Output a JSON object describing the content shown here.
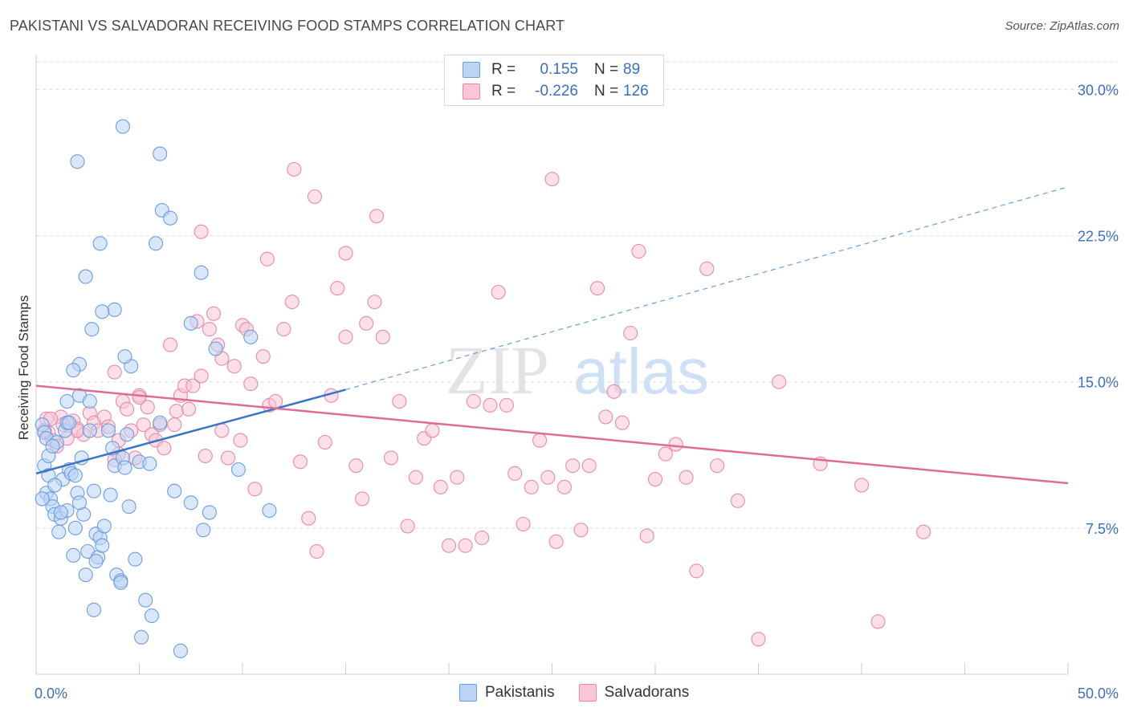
{
  "title": "PAKISTANI VS SALVADORAN RECEIVING FOOD STAMPS CORRELATION CHART",
  "source": "Source: ZipAtlas.com",
  "watermark": {
    "zip": "ZIP",
    "atlas": "atlas"
  },
  "legend": {
    "rows": [
      {
        "r_label": "R =",
        "r_value": "0.155",
        "n_label": "N =",
        "n_value": "89",
        "color": "#6a9ee0"
      },
      {
        "r_label": "R =",
        "r_value": "-0.226",
        "n_label": "N =",
        "n_value": "126",
        "color": "#e88aab"
      }
    ]
  },
  "bottom_legend": [
    "Pakistanis",
    "Salvadorans"
  ],
  "colors": {
    "blue": "#6a9ee0",
    "blue_fill": "#bcd4f4",
    "blue_line": "#3a74c8",
    "pink": "#e88aab",
    "pink_fill": "#f8c6d6",
    "pink_line": "#e06a98",
    "axis_text": "#3a6fc4",
    "grid": "#dddddd"
  },
  "chart_data": {
    "type": "scatter",
    "title": "PAKISTANI VS SALVADORAN RECEIVING FOOD STAMPS CORRELATION CHART",
    "xlabel": "",
    "ylabel": "Receiving Food Stamps",
    "xlim": [
      0,
      50
    ],
    "ylim": [
      0,
      31.5
    ],
    "x_tick_labels": [
      "0.0%",
      "50.0%"
    ],
    "y_ticks": [
      7.5,
      15.0,
      22.5,
      30.0
    ],
    "y_tick_labels": [
      "7.5%",
      "15.0%",
      "22.5%",
      "30.0%"
    ],
    "grid": true,
    "legend_position": "top-center",
    "series": [
      {
        "name": "Pakistanis",
        "color": "#6a9ee0",
        "trend": {
          "x": [
            0,
            15
          ],
          "y": [
            10.3,
            14.6
          ],
          "dashed_extension_to": {
            "x": 50,
            "y": 25.0
          }
        },
        "points": [
          [
            0.3,
            12.8
          ],
          [
            0.4,
            12.4
          ],
          [
            0.5,
            12.1
          ],
          [
            0.4,
            10.7
          ],
          [
            0.6,
            10.2
          ],
          [
            0.5,
            9.3
          ],
          [
            0.7,
            9.0
          ],
          [
            0.8,
            8.6
          ],
          [
            0.9,
            8.2
          ],
          [
            1.0,
            11.9
          ],
          [
            1.1,
            7.3
          ],
          [
            1.2,
            8.0
          ],
          [
            1.3,
            10.0
          ],
          [
            1.4,
            12.5
          ],
          [
            1.5,
            12.9
          ],
          [
            1.5,
            8.4
          ],
          [
            1.6,
            10.5
          ],
          [
            1.7,
            10.3
          ],
          [
            1.8,
            6.1
          ],
          [
            1.9,
            7.5
          ],
          [
            2.0,
            9.3
          ],
          [
            2.1,
            14.3
          ],
          [
            2.2,
            11.1
          ],
          [
            2.3,
            8.2
          ],
          [
            2.4,
            5.1
          ],
          [
            2.5,
            6.3
          ],
          [
            2.6,
            14.0
          ],
          [
            2.7,
            17.7
          ],
          [
            2.8,
            3.3
          ],
          [
            2.9,
            7.2
          ],
          [
            3.0,
            6.0
          ],
          [
            3.1,
            7.0
          ],
          [
            3.2,
            6.6
          ],
          [
            3.3,
            7.6
          ],
          [
            3.5,
            12.5
          ],
          [
            3.6,
            9.2
          ],
          [
            3.7,
            11.6
          ],
          [
            3.8,
            10.7
          ],
          [
            3.9,
            5.1
          ],
          [
            4.1,
            4.8
          ],
          [
            4.2,
            11.1
          ],
          [
            4.3,
            10.6
          ],
          [
            4.4,
            12.3
          ],
          [
            4.5,
            8.6
          ],
          [
            4.6,
            15.8
          ],
          [
            4.8,
            5.9
          ],
          [
            5.0,
            10.9
          ],
          [
            5.1,
            1.9
          ],
          [
            5.3,
            3.8
          ],
          [
            5.5,
            10.8
          ],
          [
            5.6,
            3.0
          ],
          [
            5.8,
            22.1
          ],
          [
            6.0,
            12.9
          ],
          [
            6.1,
            23.8
          ],
          [
            6.5,
            23.4
          ],
          [
            6.7,
            9.4
          ],
          [
            7.0,
            1.2
          ],
          [
            7.5,
            8.8
          ],
          [
            8.1,
            7.4
          ],
          [
            8.4,
            8.3
          ],
          [
            8.7,
            16.7
          ],
          [
            9.8,
            10.5
          ],
          [
            10.4,
            17.3
          ],
          [
            11.3,
            8.4
          ],
          [
            8.0,
            20.6
          ],
          [
            7.5,
            18.0
          ],
          [
            4.3,
            16.3
          ],
          [
            3.8,
            18.7
          ],
          [
            3.2,
            18.6
          ],
          [
            2.4,
            20.4
          ],
          [
            2.1,
            15.9
          ],
          [
            1.8,
            15.6
          ],
          [
            3.1,
            22.1
          ],
          [
            2.0,
            26.3
          ],
          [
            4.2,
            28.1
          ],
          [
            6.0,
            26.7
          ],
          [
            4.1,
            4.7
          ],
          [
            2.8,
            9.4
          ],
          [
            1.6,
            12.9
          ],
          [
            0.9,
            9.7
          ],
          [
            1.2,
            8.3
          ],
          [
            2.1,
            8.8
          ],
          [
            2.9,
            5.8
          ],
          [
            0.6,
            11.2
          ],
          [
            0.8,
            11.7
          ],
          [
            1.9,
            10.2
          ],
          [
            2.6,
            12.5
          ],
          [
            1.5,
            14.0
          ],
          [
            0.3,
            9.0
          ]
        ]
      },
      {
        "name": "Salvadorans",
        "color": "#e88aab",
        "trend": {
          "x": [
            0,
            50
          ],
          "y": [
            14.8,
            9.8
          ]
        },
        "points": [
          [
            0.5,
            13.1
          ],
          [
            0.6,
            12.4
          ],
          [
            0.8,
            12.0
          ],
          [
            1.0,
            11.7
          ],
          [
            1.2,
            13.2
          ],
          [
            1.5,
            12.1
          ],
          [
            1.8,
            13.0
          ],
          [
            2.0,
            12.6
          ],
          [
            2.3,
            12.3
          ],
          [
            2.6,
            13.4
          ],
          [
            2.8,
            12.9
          ],
          [
            3.0,
            12.5
          ],
          [
            3.3,
            13.2
          ],
          [
            3.5,
            12.7
          ],
          [
            3.8,
            15.5
          ],
          [
            4.0,
            11.3
          ],
          [
            4.2,
            14.0
          ],
          [
            4.4,
            13.6
          ],
          [
            4.6,
            12.5
          ],
          [
            4.8,
            11.1
          ],
          [
            5.0,
            14.3
          ],
          [
            5.2,
            12.8
          ],
          [
            5.4,
            13.7
          ],
          [
            5.6,
            12.3
          ],
          [
            5.8,
            12.0
          ],
          [
            6.0,
            12.8
          ],
          [
            6.2,
            11.6
          ],
          [
            6.5,
            16.9
          ],
          [
            6.8,
            13.5
          ],
          [
            7.0,
            14.3
          ],
          [
            7.2,
            14.8
          ],
          [
            7.4,
            13.6
          ],
          [
            7.6,
            14.8
          ],
          [
            7.8,
            18.1
          ],
          [
            8.0,
            15.3
          ],
          [
            8.2,
            11.2
          ],
          [
            8.4,
            17.7
          ],
          [
            8.6,
            18.5
          ],
          [
            8.8,
            16.9
          ],
          [
            9.0,
            12.5
          ],
          [
            9.3,
            11.1
          ],
          [
            9.6,
            15.8
          ],
          [
            9.9,
            12.0
          ],
          [
            10.0,
            17.9
          ],
          [
            10.2,
            17.7
          ],
          [
            10.4,
            14.9
          ],
          [
            10.6,
            9.5
          ],
          [
            11.0,
            16.3
          ],
          [
            11.3,
            13.8
          ],
          [
            11.6,
            14.0
          ],
          [
            12.0,
            17.7
          ],
          [
            12.4,
            19.1
          ],
          [
            12.8,
            10.9
          ],
          [
            13.2,
            8.0
          ],
          [
            13.6,
            6.3
          ],
          [
            14.0,
            11.9
          ],
          [
            14.3,
            14.3
          ],
          [
            14.6,
            19.8
          ],
          [
            15.0,
            21.6
          ],
          [
            15.5,
            10.7
          ],
          [
            15.8,
            9.0
          ],
          [
            16.0,
            18.0
          ],
          [
            16.4,
            19.1
          ],
          [
            16.8,
            17.3
          ],
          [
            17.2,
            11.1
          ],
          [
            17.6,
            14.0
          ],
          [
            18.0,
            7.6
          ],
          [
            18.4,
            10.1
          ],
          [
            18.8,
            12.1
          ],
          [
            19.2,
            12.5
          ],
          [
            19.6,
            9.6
          ],
          [
            20.0,
            6.6
          ],
          [
            20.4,
            10.1
          ],
          [
            20.8,
            6.6
          ],
          [
            21.2,
            14.0
          ],
          [
            21.6,
            7.0
          ],
          [
            22.0,
            13.8
          ],
          [
            22.4,
            19.6
          ],
          [
            22.8,
            13.8
          ],
          [
            23.2,
            10.3
          ],
          [
            23.6,
            7.7
          ],
          [
            24.0,
            9.6
          ],
          [
            24.4,
            12.0
          ],
          [
            24.8,
            10.1
          ],
          [
            25.2,
            6.8
          ],
          [
            25.6,
            9.6
          ],
          [
            26.0,
            10.7
          ],
          [
            26.4,
            7.4
          ],
          [
            26.8,
            10.7
          ],
          [
            27.2,
            19.8
          ],
          [
            27.6,
            13.2
          ],
          [
            28.0,
            14.5
          ],
          [
            28.4,
            12.9
          ],
          [
            28.8,
            17.5
          ],
          [
            29.2,
            21.7
          ],
          [
            29.6,
            7.1
          ],
          [
            30.0,
            10.0
          ],
          [
            30.5,
            11.3
          ],
          [
            31.0,
            11.8
          ],
          [
            31.5,
            10.1
          ],
          [
            32.0,
            5.3
          ],
          [
            32.5,
            20.8
          ],
          [
            33.0,
            10.7
          ],
          [
            34.0,
            8.9
          ],
          [
            35.0,
            1.8
          ],
          [
            36.0,
            15.0
          ],
          [
            38.0,
            10.8
          ],
          [
            40.0,
            9.7
          ],
          [
            40.8,
            2.7
          ],
          [
            43.0,
            7.3
          ],
          [
            16.5,
            23.5
          ],
          [
            13.5,
            24.5
          ],
          [
            12.5,
            25.9
          ],
          [
            25.0,
            25.4
          ],
          [
            15.0,
            17.3
          ],
          [
            9.0,
            16.2
          ],
          [
            6.7,
            12.8
          ],
          [
            2.0,
            12.5
          ],
          [
            3.8,
            11.0
          ],
          [
            5.0,
            14.2
          ],
          [
            4.0,
            12.0
          ],
          [
            1.3,
            12.8
          ],
          [
            0.4,
            12.5
          ],
          [
            0.7,
            13.1
          ],
          [
            8.0,
            22.7
          ],
          [
            11.2,
            21.3
          ]
        ]
      }
    ]
  }
}
